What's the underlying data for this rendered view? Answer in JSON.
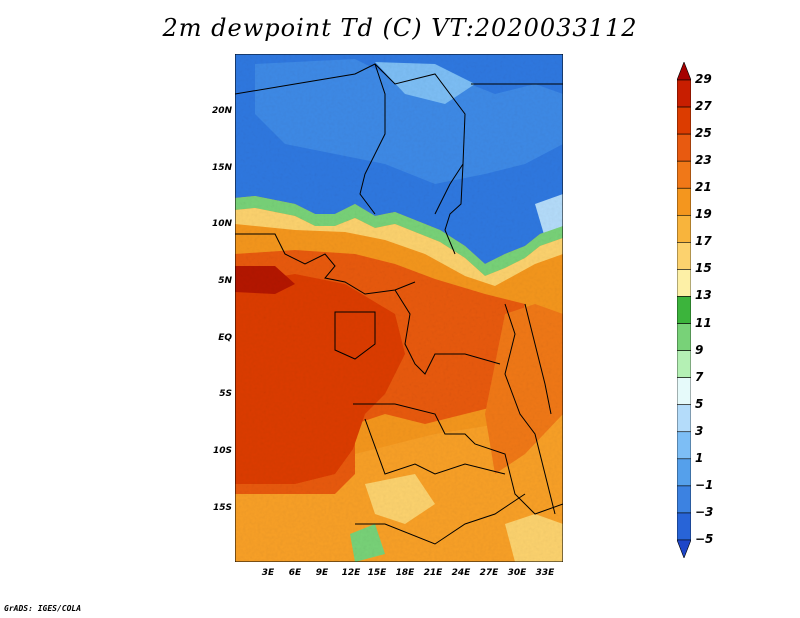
{
  "title": "2m dewpoint Td (C) VT:2020033112",
  "map": {
    "lat_ticks": [
      "20N",
      "15N",
      "10N",
      "5N",
      "EQ",
      "5S",
      "10S",
      "15S"
    ],
    "lon_ticks": [
      "3E",
      "6E",
      "9E",
      "12E",
      "15E",
      "18E",
      "21E",
      "24E",
      "27E",
      "30E",
      "33E"
    ]
  },
  "colorbar": {
    "labels": [
      "29",
      "27",
      "25",
      "23",
      "21",
      "19",
      "17",
      "15",
      "13",
      "11",
      "9",
      "7",
      "5",
      "3",
      "1",
      "−1",
      "−3",
      "−5"
    ],
    "colors": [
      "#a50000",
      "#c81e00",
      "#dc3c00",
      "#e85a10",
      "#f07818",
      "#f4961e",
      "#f8b43c",
      "#fcd26e",
      "#fdf0a6",
      "#3cb43c",
      "#78d278",
      "#b4f0b4",
      "#e6fafa",
      "#b4dcfa",
      "#7dbef5",
      "#55a0eb",
      "#3c82e1",
      "#2864d7",
      "#1e46c8"
    ]
  },
  "credit": "GrADS: IGES/COLA"
}
